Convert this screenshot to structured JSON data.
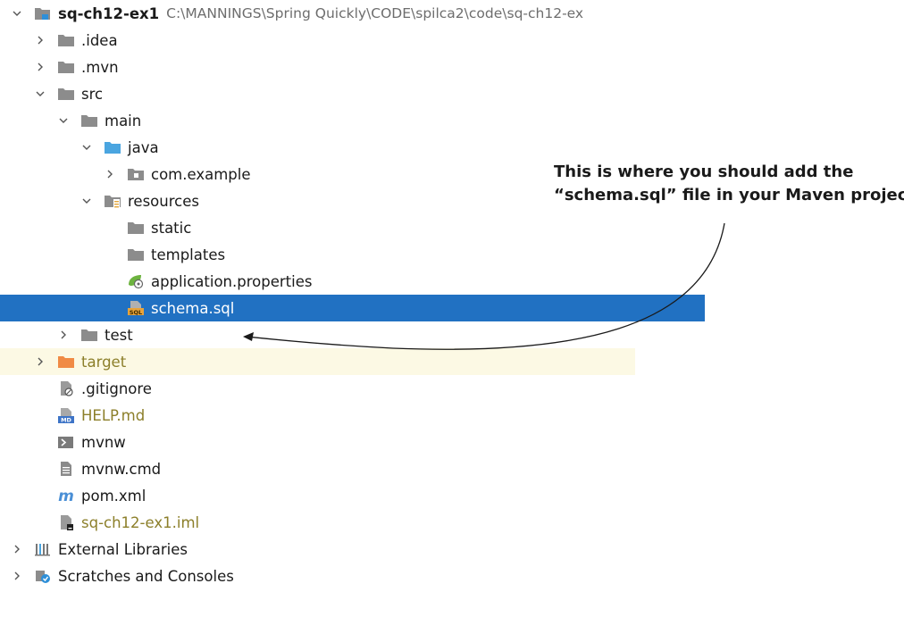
{
  "project": {
    "name": "sq-ch12-ex1",
    "path": "C:\\MANNINGS\\Spring Quickly\\CODE\\spilca2\\code\\sq-ch12-ex"
  },
  "tree": [
    {
      "id": "idea",
      "label": ".idea",
      "depth": 1,
      "expander": "collapsed",
      "icon": "folder-gray-icon"
    },
    {
      "id": "mvn",
      "label": ".mvn",
      "depth": 1,
      "expander": "collapsed",
      "icon": "folder-gray-icon"
    },
    {
      "id": "src",
      "label": "src",
      "depth": 1,
      "expander": "expanded",
      "icon": "folder-gray-icon"
    },
    {
      "id": "main",
      "label": "main",
      "depth": 2,
      "expander": "expanded",
      "icon": "folder-gray-icon"
    },
    {
      "id": "java",
      "label": "java",
      "depth": 3,
      "expander": "expanded",
      "icon": "folder-blue-icon"
    },
    {
      "id": "com-example",
      "label": "com.example",
      "depth": 4,
      "expander": "collapsed",
      "icon": "package-icon"
    },
    {
      "id": "resources",
      "label": "resources",
      "depth": 3,
      "expander": "expanded",
      "icon": "resources-folder-icon"
    },
    {
      "id": "static",
      "label": "static",
      "depth": 4,
      "expander": "none",
      "icon": "folder-gray-icon"
    },
    {
      "id": "templates",
      "label": "templates",
      "depth": 4,
      "expander": "none",
      "icon": "folder-gray-icon"
    },
    {
      "id": "application-properties",
      "label": "application.properties",
      "depth": 4,
      "expander": "none",
      "icon": "spring-properties-icon"
    },
    {
      "id": "schema-sql",
      "label": "schema.sql",
      "depth": 4,
      "expander": "none",
      "icon": "sql-file-icon",
      "selected": true
    },
    {
      "id": "test",
      "label": "test",
      "depth": 2,
      "expander": "collapsed",
      "icon": "folder-gray-icon"
    },
    {
      "id": "target",
      "label": "target",
      "depth": 1,
      "expander": "collapsed",
      "icon": "folder-orange-icon",
      "excluded": true
    },
    {
      "id": "gitignore",
      "label": ".gitignore",
      "depth": 1,
      "expander": "none",
      "icon": "gitignore-file-icon"
    },
    {
      "id": "help-md",
      "label": "HELP.md",
      "depth": 1,
      "expander": "none",
      "icon": "markdown-file-icon",
      "labelColor": "olive"
    },
    {
      "id": "mvnw",
      "label": "mvnw",
      "depth": 1,
      "expander": "none",
      "icon": "shell-script-icon"
    },
    {
      "id": "mvnw-cmd",
      "label": "mvnw.cmd",
      "depth": 1,
      "expander": "none",
      "icon": "text-file-icon"
    },
    {
      "id": "pom-xml",
      "label": "pom.xml",
      "depth": 1,
      "expander": "none",
      "icon": "maven-icon"
    },
    {
      "id": "iml",
      "label": "sq-ch12-ex1.iml",
      "depth": 1,
      "expander": "none",
      "icon": "iml-file-icon",
      "labelColor": "olive"
    },
    {
      "id": "external-libraries",
      "label": "External Libraries",
      "depth": 0,
      "expander": "collapsed",
      "icon": "libraries-icon"
    },
    {
      "id": "scratches",
      "label": "Scratches and Consoles",
      "depth": 0,
      "expander": "collapsed",
      "icon": "scratches-icon"
    }
  ],
  "annotation": {
    "line1": "This is where you should add the",
    "line2": "“schema.sql” file in your Maven project."
  },
  "colors": {
    "selection": "#2171c2",
    "excluded_background": "#fcf9e4",
    "folder_gray": "#8c8c8c",
    "folder_blue": "#4aa5e0",
    "folder_orange": "#f08b45",
    "olive_text": "#8c7f2a",
    "path_text": "#6d6d6d"
  }
}
